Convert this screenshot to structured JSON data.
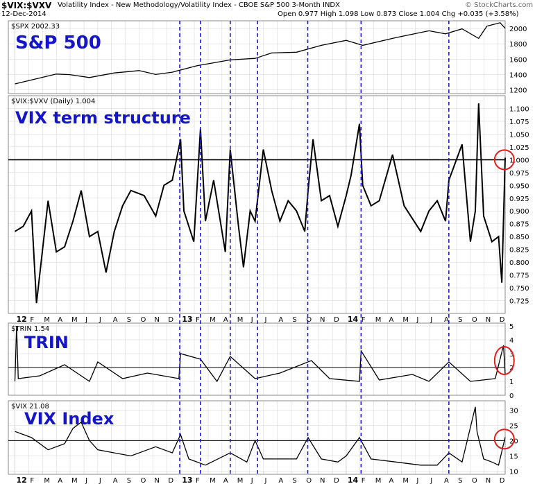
{
  "header": {
    "symbol": "$VIX:$VXV",
    "description": "Volatility Index - New Methodology/Volatility Index - CBOE S&P 500 3-Month  INDX",
    "date": "12-Dec-2014",
    "quote": "Open 0.977  High 1.098  Low 0.873  Close 1.004  Chg +0.035 (+3.58%)",
    "watermark": "© StockCharts.com"
  },
  "colors": {
    "line": "#000000",
    "vline": "#1a1ad6",
    "overlay_text": "#1515c8",
    "circle": "#e21b1b",
    "grid": "#d0d0d0"
  },
  "chart_data": [
    {
      "type": "line",
      "legend": "$SPX 2002.33",
      "overlay": "S&P 500",
      "ylim": [
        1150,
        2100
      ],
      "yticks": [
        1200,
        1400,
        1600,
        1800,
        2000
      ],
      "x_range": [
        2011.96,
        2014.96
      ],
      "series": [
        {
          "x": [
            2012.0,
            2012.25,
            2012.33,
            2012.45,
            2012.6,
            2012.75,
            2012.85,
            2012.95,
            2013.1,
            2013.3,
            2013.45,
            2013.55,
            2013.7,
            2013.85,
            2014.0,
            2014.1,
            2014.3,
            2014.5,
            2014.6,
            2014.7,
            2014.8,
            2014.85,
            2014.93,
            2014.96
          ],
          "values": [
            1277,
            1405,
            1398,
            1360,
            1420,
            1450,
            1400,
            1430,
            1515,
            1590,
            1610,
            1680,
            1690,
            1780,
            1845,
            1780,
            1880,
            1970,
            1930,
            1995,
            1870,
            2030,
            2075,
            2002
          ]
        }
      ]
    },
    {
      "type": "line",
      "legend": "$VIX:$VXV (Daily) 1.004",
      "overlay": "VIX term structure",
      "ylim": [
        0.7,
        1.125
      ],
      "yticks": [
        0.725,
        0.75,
        0.775,
        0.8,
        0.825,
        0.85,
        0.875,
        0.9,
        0.925,
        0.95,
        0.975,
        1.0,
        1.025,
        1.05,
        1.075,
        1.1
      ],
      "reference_line": 1.0,
      "circle_at": {
        "x": 2014.955,
        "y": 1.0
      },
      "x_range": [
        2011.96,
        2014.96
      ],
      "series": [
        {
          "x": [
            2012.0,
            2012.05,
            2012.1,
            2012.13,
            2012.2,
            2012.25,
            2012.3,
            2012.35,
            2012.4,
            2012.45,
            2012.5,
            2012.55,
            2012.6,
            2012.65,
            2012.7,
            2012.78,
            2012.85,
            2012.9,
            2012.95,
            2013.0,
            2013.02,
            2013.08,
            2013.12,
            2013.15,
            2013.2,
            2013.27,
            2013.3,
            2013.35,
            2013.38,
            2013.42,
            2013.45,
            2013.5,
            2013.55,
            2013.6,
            2013.65,
            2013.7,
            2013.75,
            2013.77,
            2013.8,
            2013.85,
            2013.9,
            2013.95,
            2014.0,
            2014.03,
            2014.08,
            2014.1,
            2014.15,
            2014.2,
            2014.28,
            2014.35,
            2014.45,
            2014.5,
            2014.55,
            2014.6,
            2014.62,
            2014.7,
            2014.75,
            2014.78,
            2014.8,
            2014.83,
            2014.88,
            2014.92,
            2014.94,
            2014.96
          ],
          "values": [
            0.86,
            0.87,
            0.9,
            0.72,
            0.92,
            0.82,
            0.83,
            0.88,
            0.94,
            0.85,
            0.86,
            0.78,
            0.86,
            0.91,
            0.94,
            0.93,
            0.89,
            0.95,
            0.96,
            1.04,
            0.9,
            0.84,
            1.06,
            0.88,
            0.96,
            0.82,
            1.02,
            0.87,
            0.79,
            0.9,
            0.88,
            1.02,
            0.94,
            0.88,
            0.92,
            0.9,
            0.86,
            0.94,
            1.04,
            0.92,
            0.93,
            0.87,
            0.93,
            0.97,
            1.07,
            0.95,
            0.91,
            0.92,
            1.01,
            0.91,
            0.86,
            0.9,
            0.92,
            0.88,
            0.96,
            1.03,
            0.84,
            0.9,
            1.11,
            0.89,
            0.84,
            0.85,
            0.76,
            1.004
          ]
        }
      ]
    },
    {
      "type": "line",
      "legend": "$TRIN 1.54",
      "overlay": "TRIN",
      "ylim": [
        0,
        5.2
      ],
      "yticks": [
        0,
        1,
        2,
        3,
        4,
        5
      ],
      "reference_line": 2,
      "circle_at": {
        "x": 2014.955,
        "y": 2.5
      },
      "x_range": [
        2011.96,
        2014.96
      ],
      "series": [
        {
          "x": [
            2012.0,
            2012.01,
            2012.02,
            2012.15,
            2012.3,
            2012.45,
            2012.5,
            2012.65,
            2012.8,
            2012.99,
            2013.0,
            2013.12,
            2013.22,
            2013.3,
            2013.45,
            2013.6,
            2013.79,
            2013.9,
            2014.08,
            2014.09,
            2014.2,
            2014.4,
            2014.5,
            2014.62,
            2014.75,
            2014.9,
            2014.95,
            2014.96
          ],
          "values": [
            1.0,
            5.0,
            1.2,
            1.4,
            2.2,
            1.0,
            2.4,
            1.2,
            1.6,
            1.2,
            3.0,
            2.6,
            1.0,
            2.8,
            1.2,
            1.6,
            2.5,
            1.2,
            1.0,
            3.2,
            1.1,
            1.5,
            1.0,
            2.4,
            1.0,
            1.2,
            3.6,
            1.54
          ]
        }
      ]
    },
    {
      "type": "line",
      "legend": "$VIX 21.08",
      "overlay": "VIX Index",
      "ylim": [
        9,
        33
      ],
      "yticks": [
        10,
        15,
        20,
        25,
        30
      ],
      "reference_line": 20,
      "circle_at": {
        "x": 2014.955,
        "y": 20.5
      },
      "x_range": [
        2011.96,
        2014.96
      ],
      "series": [
        {
          "x": [
            2012.0,
            2012.1,
            2012.2,
            2012.3,
            2012.35,
            2012.4,
            2012.45,
            2012.5,
            2012.6,
            2012.7,
            2012.8,
            2012.85,
            2012.95,
            2013.0,
            2013.05,
            2013.15,
            2013.3,
            2013.4,
            2013.45,
            2013.5,
            2013.7,
            2013.77,
            2013.85,
            2013.95,
            2014.0,
            2014.08,
            2014.15,
            2014.3,
            2014.45,
            2014.55,
            2014.62,
            2014.7,
            2014.78,
            2014.79,
            2014.83,
            2014.88,
            2014.92,
            2014.96
          ],
          "values": [
            23,
            21,
            17,
            19,
            24,
            26,
            20,
            17,
            16,
            15,
            17,
            18,
            16,
            22,
            14,
            12,
            16,
            13,
            20,
            14,
            14,
            21,
            14,
            13,
            15,
            21,
            14,
            13,
            12,
            12,
            16,
            13,
            31,
            23,
            14,
            13,
            12,
            21.08
          ]
        }
      ]
    }
  ],
  "x_axis": {
    "labels": [
      {
        "label": "12",
        "x": 2012.0,
        "bold": true
      },
      {
        "label": "F",
        "x": 2012.083
      },
      {
        "label": "M",
        "x": 2012.167
      },
      {
        "label": "A",
        "x": 2012.25
      },
      {
        "label": "M",
        "x": 2012.333
      },
      {
        "label": "J",
        "x": 2012.417
      },
      {
        "label": "J",
        "x": 2012.5
      },
      {
        "label": "A",
        "x": 2012.583
      },
      {
        "label": "S",
        "x": 2012.667
      },
      {
        "label": "O",
        "x": 2012.75
      },
      {
        "label": "N",
        "x": 2012.833
      },
      {
        "label": "D",
        "x": 2012.917
      },
      {
        "label": "13",
        "x": 2013.0,
        "bold": true
      },
      {
        "label": "F",
        "x": 2013.083
      },
      {
        "label": "M",
        "x": 2013.167
      },
      {
        "label": "A",
        "x": 2013.25
      },
      {
        "label": "M",
        "x": 2013.333
      },
      {
        "label": "J",
        "x": 2013.417
      },
      {
        "label": "J",
        "x": 2013.5
      },
      {
        "label": "A",
        "x": 2013.583
      },
      {
        "label": "S",
        "x": 2013.667
      },
      {
        "label": "O",
        "x": 2013.75
      },
      {
        "label": "N",
        "x": 2013.833
      },
      {
        "label": "D",
        "x": 2013.917
      },
      {
        "label": "14",
        "x": 2014.0,
        "bold": true
      },
      {
        "label": "F",
        "x": 2014.083
      },
      {
        "label": "M",
        "x": 2014.167
      },
      {
        "label": "A",
        "x": 2014.25
      },
      {
        "label": "M",
        "x": 2014.333
      },
      {
        "label": "J",
        "x": 2014.417
      },
      {
        "label": "J",
        "x": 2014.5
      },
      {
        "label": "A",
        "x": 2014.583
      },
      {
        "label": "S",
        "x": 2014.667
      },
      {
        "label": "O",
        "x": 2014.75
      },
      {
        "label": "N",
        "x": 2014.833
      },
      {
        "label": "D",
        "x": 2014.917
      }
    ],
    "marked_dates": [
      2012.995,
      2013.12,
      2013.3,
      2013.465,
      2013.768,
      2014.09,
      2014.62
    ]
  }
}
